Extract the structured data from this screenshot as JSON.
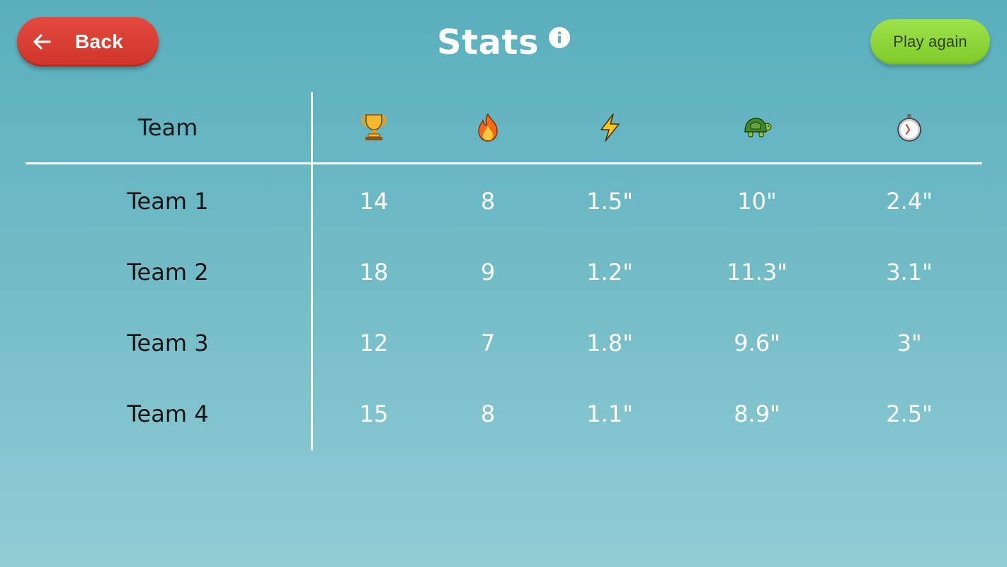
{
  "header": {
    "back_label": "Back",
    "title": "Stats",
    "play_again_label": "Play again"
  },
  "colors": {
    "background_top": "#5aafbd",
    "background_bottom": "#92ccd5",
    "back_button": "#dc4236",
    "play_button": "#8fd63a",
    "text_dark": "#151515",
    "text_light": "#ffffff"
  },
  "table": {
    "team_header": "Team",
    "columns": [
      {
        "icon": "trophy-icon"
      },
      {
        "icon": "fire-icon"
      },
      {
        "icon": "lightning-icon"
      },
      {
        "icon": "turtle-icon"
      },
      {
        "icon": "stopwatch-icon"
      }
    ],
    "rows": [
      {
        "team": "Team 1",
        "values": [
          "14",
          "8",
          "1.5\"",
          "10\"",
          "2.4\""
        ]
      },
      {
        "team": "Team 2",
        "values": [
          "18",
          "9",
          "1.2\"",
          "11.3\"",
          "3.1\""
        ]
      },
      {
        "team": "Team 3",
        "values": [
          "12",
          "7",
          "1.8\"",
          "9.6\"",
          "3\""
        ]
      },
      {
        "team": "Team 4",
        "values": [
          "15",
          "8",
          "1.1\"",
          "8.9\"",
          "2.5\""
        ]
      }
    ]
  }
}
